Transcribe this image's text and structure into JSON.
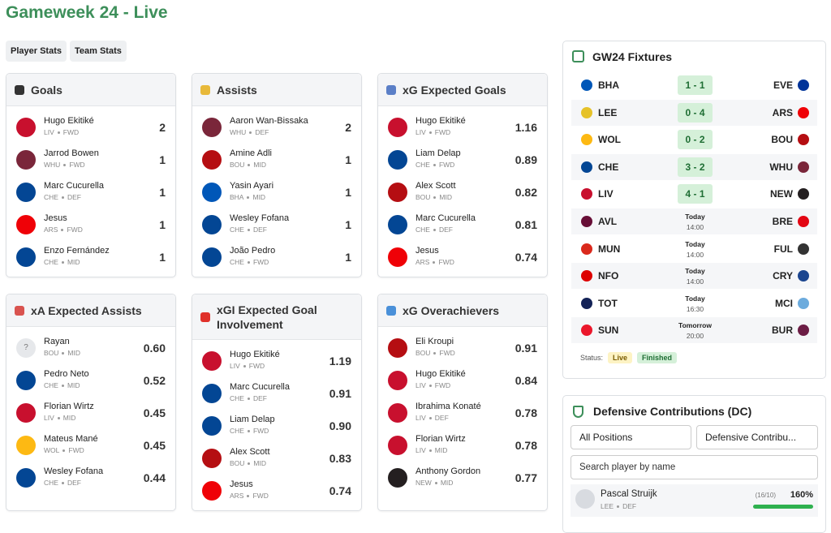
{
  "header": {
    "title": "Gameweek 24 - Live"
  },
  "tabs": [
    "Player Stats",
    "Team Stats"
  ],
  "cards": [
    {
      "title": "Goals",
      "icon_color": "#333",
      "players": [
        {
          "name": "Hugo Ekitiké",
          "team": "LIV",
          "pos": "FWD",
          "value": "2",
          "kit": "#c8102e"
        },
        {
          "name": "Jarrod Bowen",
          "team": "WHU",
          "pos": "FWD",
          "value": "1",
          "kit": "#7a263a"
        },
        {
          "name": "Marc Cucurella",
          "team": "CHE",
          "pos": "DEF",
          "value": "1",
          "kit": "#034694"
        },
        {
          "name": "Jesus",
          "team": "ARS",
          "pos": "FWD",
          "value": "1",
          "kit": "#ef0107"
        },
        {
          "name": "Enzo Fernández",
          "team": "CHE",
          "pos": "MID",
          "value": "1",
          "kit": "#034694"
        }
      ]
    },
    {
      "title": "Assists",
      "icon_color": "#e8b93a",
      "players": [
        {
          "name": "Aaron Wan-Bissaka",
          "team": "WHU",
          "pos": "DEF",
          "value": "2",
          "kit": "#7a263a"
        },
        {
          "name": "Amine Adli",
          "team": "BOU",
          "pos": "MID",
          "value": "1",
          "kit": "#b50e12"
        },
        {
          "name": "Yasin Ayari",
          "team": "BHA",
          "pos": "MID",
          "value": "1",
          "kit": "#0057b8"
        },
        {
          "name": "Wesley Fofana",
          "team": "CHE",
          "pos": "DEF",
          "value": "1",
          "kit": "#034694"
        },
        {
          "name": "João Pedro",
          "team": "CHE",
          "pos": "FWD",
          "value": "1",
          "kit": "#034694"
        }
      ]
    },
    {
      "title": "xG Expected Goals",
      "icon_color": "#5b7fc7",
      "players": [
        {
          "name": "Hugo Ekitiké",
          "team": "LIV",
          "pos": "FWD",
          "value": "1.16",
          "kit": "#c8102e"
        },
        {
          "name": "Liam Delap",
          "team": "CHE",
          "pos": "FWD",
          "value": "0.89",
          "kit": "#034694"
        },
        {
          "name": "Alex Scott",
          "team": "BOU",
          "pos": "MID",
          "value": "0.82",
          "kit": "#b50e12"
        },
        {
          "name": "Marc Cucurella",
          "team": "CHE",
          "pos": "DEF",
          "value": "0.81",
          "kit": "#034694"
        },
        {
          "name": "Jesus",
          "team": "ARS",
          "pos": "FWD",
          "value": "0.74",
          "kit": "#ef0107"
        }
      ]
    },
    {
      "title": "xA Expected Assists",
      "icon_color": "#d9534f",
      "players": [
        {
          "name": "Rayan",
          "team": "BOU",
          "pos": "MID",
          "value": "0.60",
          "avatar": "?"
        },
        {
          "name": "Pedro Neto",
          "team": "CHE",
          "pos": "MID",
          "value": "0.52",
          "kit": "#034694"
        },
        {
          "name": "Florian Wirtz",
          "team": "LIV",
          "pos": "MID",
          "value": "0.45",
          "kit": "#c8102e"
        },
        {
          "name": "Mateus Mané",
          "team": "WOL",
          "pos": "FWD",
          "value": "0.45",
          "kit": "#fdb913"
        },
        {
          "name": "Wesley Fofana",
          "team": "CHE",
          "pos": "DEF",
          "value": "0.44",
          "kit": "#034694"
        }
      ]
    },
    {
      "title": "xGI Expected Goal Involvement",
      "icon_color": "#e0312a",
      "players": [
        {
          "name": "Hugo Ekitiké",
          "team": "LIV",
          "pos": "FWD",
          "value": "1.19",
          "kit": "#c8102e"
        },
        {
          "name": "Marc Cucurella",
          "team": "CHE",
          "pos": "DEF",
          "value": "0.91",
          "kit": "#034694"
        },
        {
          "name": "Liam Delap",
          "team": "CHE",
          "pos": "FWD",
          "value": "0.90",
          "kit": "#034694"
        },
        {
          "name": "Alex Scott",
          "team": "BOU",
          "pos": "MID",
          "value": "0.83",
          "kit": "#b50e12"
        },
        {
          "name": "Jesus",
          "team": "ARS",
          "pos": "FWD",
          "value": "0.74",
          "kit": "#ef0107"
        }
      ]
    },
    {
      "title": "xG Overachievers",
      "icon_color": "#4a90d9",
      "players": [
        {
          "name": "Eli Kroupi",
          "team": "BOU",
          "pos": "FWD",
          "value": "0.91",
          "kit": "#b50e12"
        },
        {
          "name": "Hugo Ekitiké",
          "team": "LIV",
          "pos": "FWD",
          "value": "0.84",
          "kit": "#c8102e"
        },
        {
          "name": "Ibrahima Konaté",
          "team": "LIV",
          "pos": "DEF",
          "value": "0.78",
          "kit": "#c8102e"
        },
        {
          "name": "Florian Wirtz",
          "team": "LIV",
          "pos": "MID",
          "value": "0.78",
          "kit": "#c8102e"
        },
        {
          "name": "Anthony Gordon",
          "team": "NEW",
          "pos": "MID",
          "value": "0.77",
          "kit": "#241f20"
        }
      ]
    }
  ],
  "fixtures": {
    "title": "GW24 Fixtures",
    "matches": [
      {
        "home": "BHA",
        "away": "EVE",
        "score": "1 - 1",
        "home_color": "#0057b8",
        "away_color": "#003399"
      },
      {
        "home": "LEE",
        "away": "ARS",
        "score": "0 - 4",
        "home_color": "#e6c229",
        "away_color": "#ef0107"
      },
      {
        "home": "WOL",
        "away": "BOU",
        "score": "0 - 2",
        "home_color": "#fdb913",
        "away_color": "#b50e12"
      },
      {
        "home": "CHE",
        "away": "WHU",
        "score": "3 - 2",
        "home_color": "#034694",
        "away_color": "#7a263a"
      },
      {
        "home": "LIV",
        "away": "NEW",
        "score": "4 - 1",
        "home_color": "#c8102e",
        "away_color": "#241f20"
      },
      {
        "home": "AVL",
        "away": "BRE",
        "day": "Today",
        "time": "14:00",
        "home_color": "#670e36",
        "away_color": "#e30613"
      },
      {
        "home": "MUN",
        "away": "FUL",
        "day": "Today",
        "time": "14:00",
        "home_color": "#da291c",
        "away_color": "#333333"
      },
      {
        "home": "NFO",
        "away": "CRY",
        "day": "Today",
        "time": "14:00",
        "home_color": "#dd0000",
        "away_color": "#1b458f"
      },
      {
        "home": "TOT",
        "away": "MCI",
        "day": "Today",
        "time": "16:30",
        "home_color": "#132257",
        "away_color": "#6cabdd"
      },
      {
        "home": "SUN",
        "away": "BUR",
        "day": "Tomorrow",
        "time": "20:00",
        "home_color": "#eb172b",
        "away_color": "#6c1d45"
      }
    ],
    "legend_label": "Status:",
    "legend": [
      "Live",
      "Finished"
    ]
  },
  "defensive": {
    "title": "Defensive Contributions (DC)",
    "filters": [
      "All Positions",
      "Defensive Contribu..."
    ],
    "search": "Search player by name",
    "players": [
      {
        "name": "Pascal Struijk",
        "team": "LEE",
        "pos": "DEF",
        "ratio": "(16/10)",
        "pct": "160%"
      }
    ]
  }
}
